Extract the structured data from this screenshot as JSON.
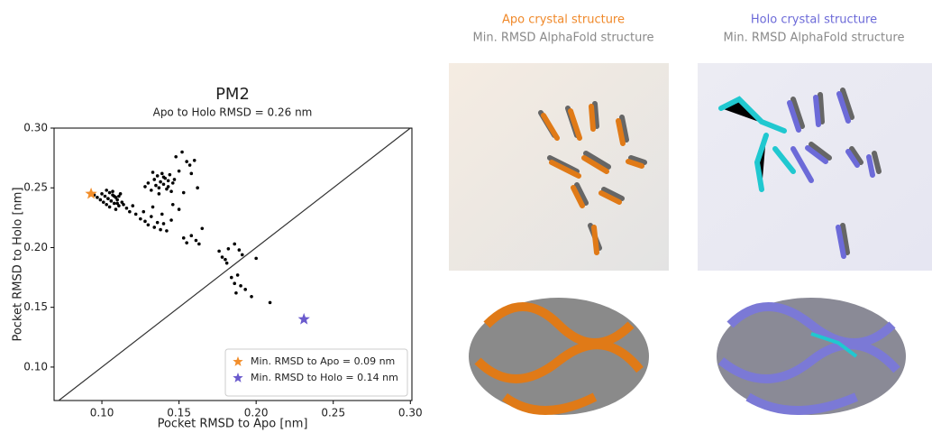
{
  "chart_data": {
    "type": "scatter",
    "title": "PM2",
    "subtitle": "Apo to Holo RMSD = 0.26 nm",
    "xlabel": "Pocket RMSD to Apo [nm]",
    "ylabel": "Pocket RMSD to Holo [nm]",
    "xlim": [
      0.069,
      0.301
    ],
    "ylim": [
      0.072,
      0.3
    ],
    "xticks": [
      {
        "value": 0.1,
        "label": "0.10"
      },
      {
        "value": 0.15,
        "label": "0.15"
      },
      {
        "value": 0.2,
        "label": "0.20"
      },
      {
        "value": 0.25,
        "label": "0.25"
      },
      {
        "value": 0.3,
        "label": "0.30"
      }
    ],
    "yticks": [
      {
        "value": 0.1,
        "label": "0.10"
      },
      {
        "value": 0.15,
        "label": "0.15"
      },
      {
        "value": 0.2,
        "label": "0.20"
      },
      {
        "value": 0.25,
        "label": "0.25"
      },
      {
        "value": 0.3,
        "label": "0.30"
      }
    ],
    "legend": "lower right",
    "diagonal": true,
    "points": {
      "color": "#000000",
      "x": [
        0.095,
        0.097,
        0.099,
        0.1,
        0.101,
        0.102,
        0.103,
        0.104,
        0.105,
        0.106,
        0.107,
        0.108,
        0.109,
        0.11,
        0.111,
        0.112,
        0.103,
        0.105,
        0.107,
        0.109,
        0.111,
        0.113,
        0.114,
        0.116,
        0.118,
        0.12,
        0.104,
        0.106,
        0.108,
        0.11,
        0.128,
        0.13,
        0.132,
        0.134,
        0.135,
        0.136,
        0.137,
        0.138,
        0.139,
        0.14,
        0.141,
        0.142,
        0.143,
        0.144,
        0.145,
        0.146,
        0.133,
        0.137,
        0.14,
        0.143,
        0.147,
        0.15,
        0.152,
        0.155,
        0.157,
        0.16,
        0.162,
        0.148,
        0.153,
        0.158,
        0.122,
        0.125,
        0.128,
        0.13,
        0.132,
        0.134,
        0.136,
        0.138,
        0.14,
        0.142,
        0.145,
        0.127,
        0.133,
        0.139,
        0.146,
        0.15,
        0.153,
        0.155,
        0.158,
        0.161,
        0.163,
        0.165,
        0.176,
        0.178,
        0.18,
        0.182,
        0.181,
        0.186,
        0.189,
        0.191,
        0.184,
        0.186,
        0.188,
        0.19,
        0.187,
        0.193,
        0.197,
        0.2,
        0.209
      ],
      "y": [
        0.244,
        0.242,
        0.24,
        0.245,
        0.238,
        0.243,
        0.236,
        0.241,
        0.246,
        0.239,
        0.244,
        0.237,
        0.242,
        0.24,
        0.235,
        0.245,
        0.248,
        0.234,
        0.247,
        0.232,
        0.243,
        0.238,
        0.236,
        0.233,
        0.23,
        0.235,
        0.241,
        0.239,
        0.243,
        0.237,
        0.251,
        0.254,
        0.248,
        0.257,
        0.252,
        0.26,
        0.25,
        0.255,
        0.262,
        0.253,
        0.258,
        0.249,
        0.256,
        0.261,
        0.247,
        0.254,
        0.263,
        0.245,
        0.259,
        0.251,
        0.257,
        0.264,
        0.28,
        0.272,
        0.269,
        0.273,
        0.25,
        0.276,
        0.246,
        0.262,
        0.228,
        0.224,
        0.222,
        0.219,
        0.226,
        0.217,
        0.221,
        0.215,
        0.22,
        0.214,
        0.223,
        0.23,
        0.234,
        0.228,
        0.236,
        0.232,
        0.208,
        0.204,
        0.21,
        0.206,
        0.203,
        0.216,
        0.197,
        0.192,
        0.19,
        0.199,
        0.187,
        0.203,
        0.198,
        0.194,
        0.175,
        0.17,
        0.177,
        0.168,
        0.162,
        0.165,
        0.159,
        0.191,
        0.154
      ]
    },
    "series": [
      {
        "name": "Min. RMSD to Apo = 0.09 nm",
        "color": "#f28e2b",
        "x": [
          0.093
        ],
        "values": [
          0.245
        ]
      },
      {
        "name": "Min. RMSD to Holo = 0.14 nm",
        "color": "#6a5acd",
        "x": [
          0.231
        ],
        "values": [
          0.14
        ]
      }
    ]
  },
  "panels": [
    {
      "title": "Apo crystal structure",
      "subtitle": "Min. RMSD AlphaFold structure"
    },
    {
      "title": "Holo crystal structure",
      "subtitle": "Min. RMSD AlphaFold structure"
    }
  ]
}
